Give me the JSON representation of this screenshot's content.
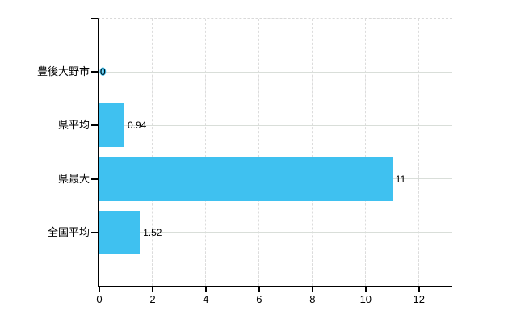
{
  "chart_data": {
    "type": "bar",
    "orientation": "horizontal",
    "title": "",
    "xlabel": "",
    "ylabel": "",
    "categories": [
      "豊後大野市",
      "県平均",
      "県最大",
      "全国平均"
    ],
    "values": [
      0,
      0.94,
      11,
      1.52
    ],
    "value_labels": [
      "0",
      "0.94",
      "11",
      "1.52"
    ],
    "xticks": [
      0,
      2,
      4,
      6,
      8,
      10,
      12
    ],
    "xtick_labels": [
      "0",
      "2",
      "4",
      "6",
      "8",
      "10",
      "12"
    ],
    "xlim": [
      0,
      13.25
    ],
    "grid": true,
    "legend": false
  },
  "colors": {
    "bar": "#3fc1f0",
    "h_grid": "#d9ded9",
    "v_grid": "#dcdcdc",
    "axis": "#000000",
    "text": "#000000",
    "background": "#ffffff"
  }
}
